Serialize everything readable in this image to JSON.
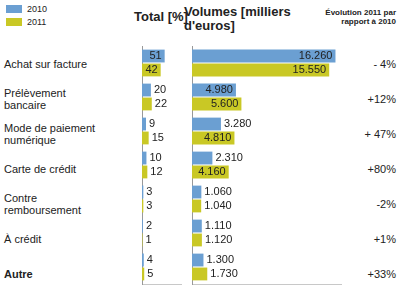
{
  "chart_data": [
    {
      "type": "bar",
      "orientation": "horizontal",
      "title": "Total [%]",
      "categories": [
        "Achat sur facture",
        "Prélèvement bancaire",
        "Mode de paiement numérique",
        "Carte de crédit",
        "Contre remboursement",
        "À crédit",
        "Autre"
      ],
      "series": [
        {
          "name": "2010",
          "color": "#6b9fd2",
          "values": [
            51,
            20,
            9,
            10,
            3,
            2,
            4
          ]
        },
        {
          "name": "2011",
          "color": "#c9c825",
          "values": [
            42,
            22,
            15,
            12,
            3,
            1,
            5
          ]
        }
      ],
      "xlim": [
        0,
        90
      ],
      "grid": false,
      "tick_labels": false,
      "data_labels": true,
      "legend": "top-left"
    },
    {
      "type": "bar",
      "orientation": "horizontal",
      "title": "Volumes [milliers d'euros]",
      "categories": [
        "Achat sur facture",
        "Prélèvement bancaire",
        "Mode de paiement numérique",
        "Carte de crédit",
        "Contre remboursement",
        "À crédit",
        "Autre"
      ],
      "series": [
        {
          "name": "2010",
          "color": "#6b9fd2",
          "values": [
            16260,
            4980,
            3280,
            2310,
            1060,
            1110,
            1300
          ],
          "value_labels": [
            "16.260",
            "4.980",
            "3.280",
            "2.310",
            "1.060",
            "1.110",
            "1.300"
          ]
        },
        {
          "name": "2011",
          "color": "#c9c825",
          "values": [
            15550,
            5600,
            4810,
            4160,
            1040,
            1120,
            1730
          ],
          "value_labels": [
            "15.550",
            "5.600",
            "4.810",
            "4.160",
            "1.040",
            "1.120",
            "1.730"
          ]
        }
      ],
      "xlim": [
        0,
        17000
      ],
      "grid": false,
      "tick_labels": false,
      "data_labels": true,
      "annotations": {
        "title": "Évolution 2011 par rapport à 2010",
        "labels": [
          "- 4%",
          "+12%",
          "+ 47%",
          "+80%",
          "-2%",
          "+1%",
          "+33%"
        ]
      }
    }
  ]
}
